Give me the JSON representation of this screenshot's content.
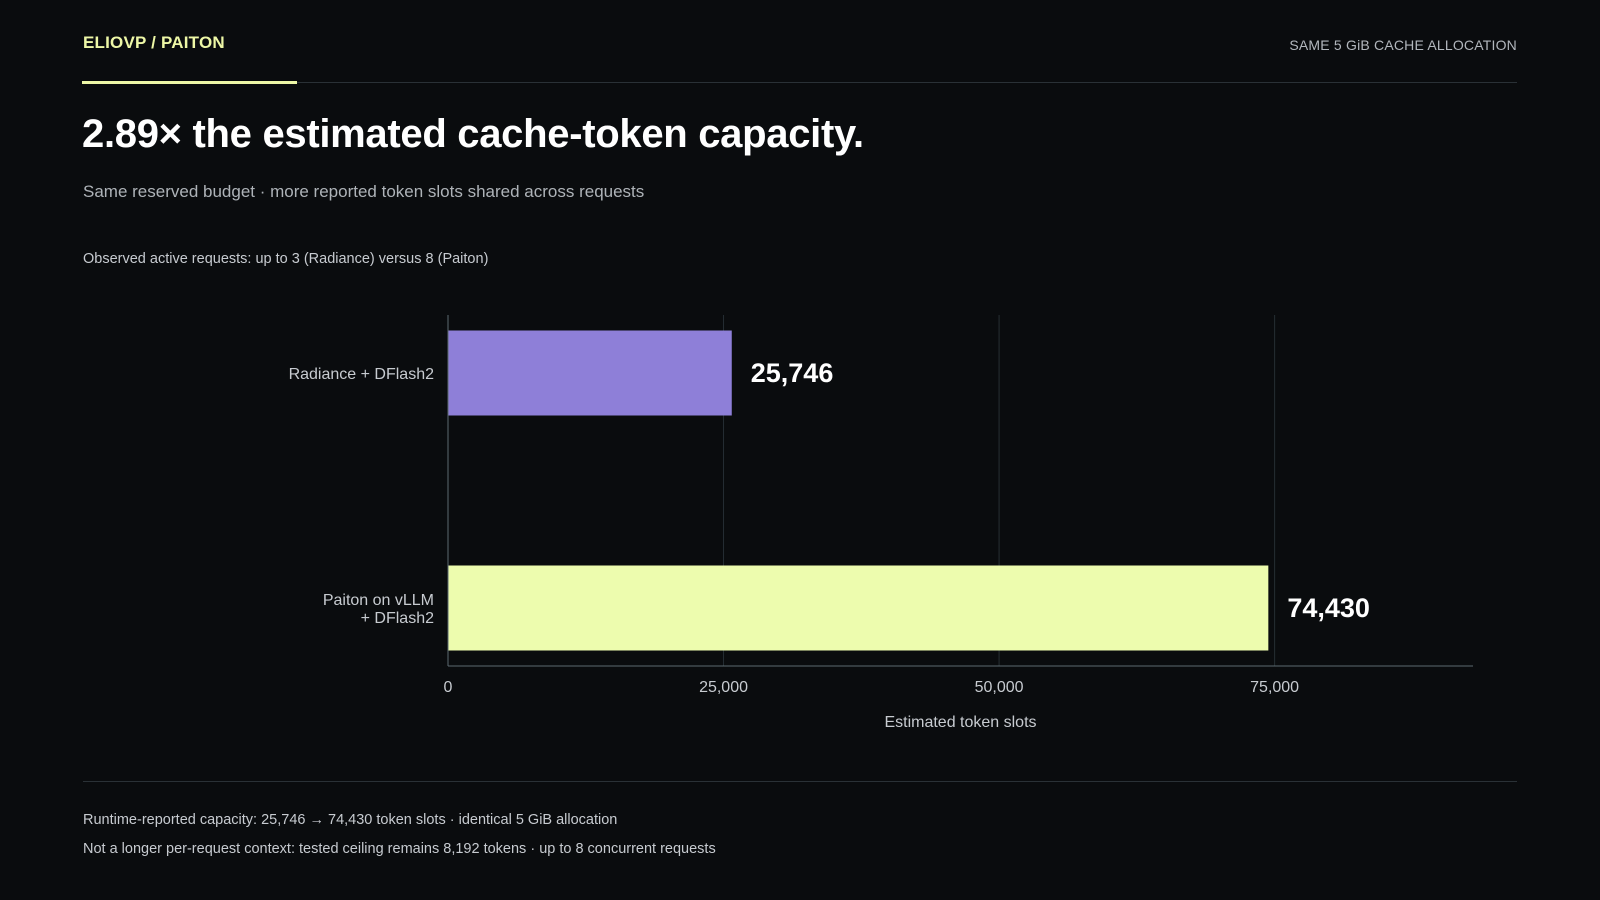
{
  "header": {
    "brand": "ELIOVP / PAITON",
    "tag": "SAME 5 GiB CACHE ALLOCATION"
  },
  "headline": "2.89× the estimated cache-token capacity.",
  "subtitle": "Same reserved budget · more reported token slots shared across requests",
  "note": "Observed active requests: up to 3 (Radiance) versus 8 (Paiton)",
  "colors": {
    "background": "#0a0c0e",
    "accent": "#edf7a6",
    "radiance_bar": "#8e7fd8",
    "paiton_bar": "#edfcae",
    "gridline": "#262e33"
  },
  "chart_data": {
    "type": "bar",
    "orientation": "horizontal",
    "categories": [
      [
        "Radiance + DFlash2"
      ],
      [
        "Paiton on vLLM",
        "+ DFlash2"
      ]
    ],
    "values": [
      25746,
      74430
    ],
    "value_labels": [
      "25,746",
      "74,430"
    ],
    "bar_colors": [
      "#8e7fd8",
      "#edfcae"
    ],
    "xlabel": "Estimated token slots",
    "xlim": [
      0,
      93000
    ],
    "xticks": [
      0,
      25000,
      50000,
      75000
    ],
    "xtick_labels": [
      "0",
      "25,000",
      "50,000",
      "75,000"
    ],
    "grid": "vertical"
  },
  "footer": {
    "line1": "Runtime-reported capacity: 25,746 → 74,430 token slots · identical 5 GiB allocation",
    "line2": "Not a longer per-request context: tested ceiling remains 8,192 tokens · up to 8 concurrent requests"
  }
}
